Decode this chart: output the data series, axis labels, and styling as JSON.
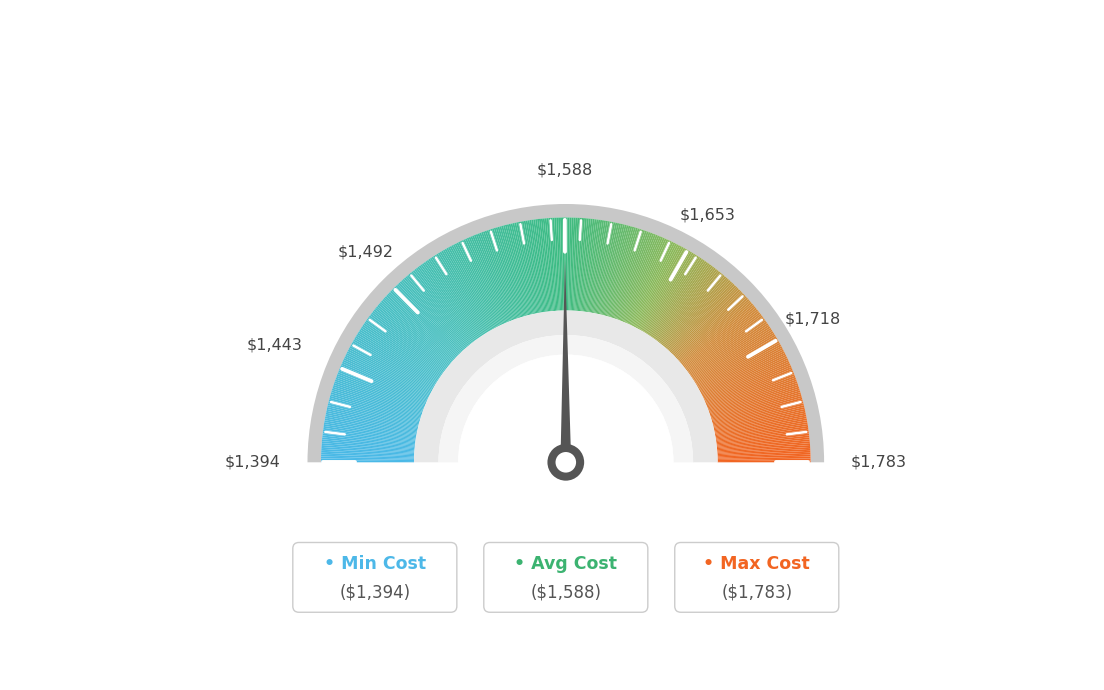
{
  "min_val": 1394,
  "max_val": 1783,
  "avg_val": 1588,
  "tick_values": [
    1394,
    1443,
    1492,
    1588,
    1653,
    1718,
    1783
  ],
  "tick_labels": [
    "$1,394",
    "$1,443",
    "$1,492",
    "$1,588",
    "$1,653",
    "$1,718",
    "$1,783"
  ],
  "legend": [
    {
      "label": "Min Cost",
      "value": "($1,394)",
      "color": "#4db8e8"
    },
    {
      "label": "Avg Cost",
      "value": "($1,588)",
      "color": "#3cb371"
    },
    {
      "label": "Max Cost",
      "value": "($1,783)",
      "color": "#f26522"
    }
  ],
  "bg_color": "#ffffff",
  "needle_value": 1588,
  "color_stops": [
    [
      0.0,
      [
        75,
        185,
        232
      ]
    ],
    [
      0.25,
      [
        72,
        192,
        192
      ]
    ],
    [
      0.5,
      [
        62,
        188,
        130
      ]
    ],
    [
      0.65,
      [
        140,
        185,
        90
      ]
    ],
    [
      0.78,
      [
        210,
        140,
        60
      ]
    ],
    [
      1.0,
      [
        242,
        101,
        34
      ]
    ]
  ]
}
